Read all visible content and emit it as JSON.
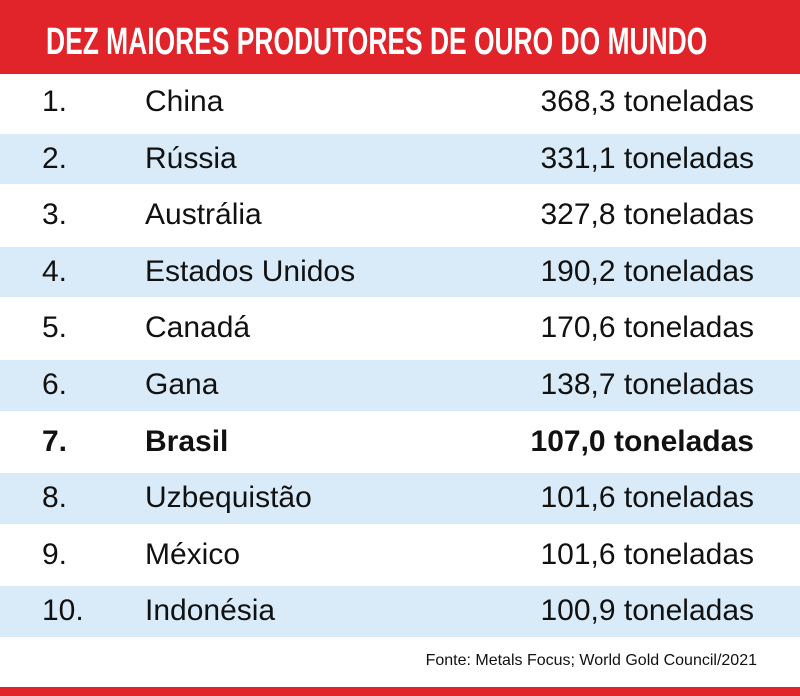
{
  "colors": {
    "header": "#e0242a",
    "alt_row": "#d9ebf8"
  },
  "chart_data": {
    "type": "table",
    "title": "DEZ MAIORES PRODUTORES DE OURO DO MUNDO",
    "highlight_rank": "7.",
    "rows": [
      {
        "rank": "1.",
        "country": "China",
        "value": "368,3 toneladas"
      },
      {
        "rank": "2.",
        "country": "Rússia",
        "value": "331,1 toneladas"
      },
      {
        "rank": "3.",
        "country": "Austrália",
        "value": "327,8 toneladas"
      },
      {
        "rank": "4.",
        "country": "Estados Unidos",
        "value": "190,2 toneladas"
      },
      {
        "rank": "5.",
        "country": "Canadá",
        "value": "170,6 toneladas"
      },
      {
        "rank": "6.",
        "country": "Gana",
        "value": "138,7 toneladas"
      },
      {
        "rank": "7.",
        "country": "Brasil",
        "value": "107,0 toneladas"
      },
      {
        "rank": "8.",
        "country": "Uzbequistão",
        "value": "101,6 toneladas"
      },
      {
        "rank": "9.",
        "country": "México",
        "value": "101,6 toneladas"
      },
      {
        "rank": "10.",
        "country": "Indonésia",
        "value": "100,9 toneladas"
      }
    ],
    "source": "Fonte: Metals Focus; World Gold Council/2021"
  }
}
